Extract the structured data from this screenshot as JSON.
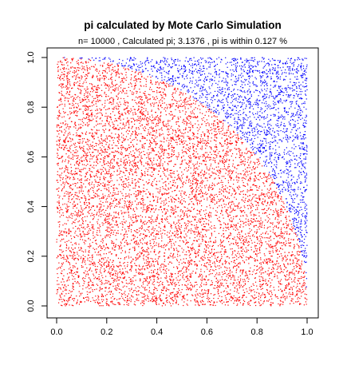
{
  "chart_data": {
    "type": "scatter",
    "title": "pi calculated by Mote Carlo Simulation",
    "subtitle": "n= 10000 , Calculated pi; 3.1376 , pi is within 0.127 %",
    "xlabel": "",
    "ylabel": "",
    "xlim": [
      0,
      1
    ],
    "ylim": [
      0,
      1
    ],
    "x_ticks": [
      "0.0",
      "0.2",
      "0.4",
      "0.6",
      "0.8",
      "1.0"
    ],
    "y_ticks": [
      "0.0",
      "0.2",
      "0.4",
      "0.6",
      "0.8",
      "1.0"
    ],
    "grid": false,
    "legend": "none",
    "n": 10000,
    "inside_count": 7844,
    "outside_count": 2156,
    "colors": {
      "inside": "#ff0000",
      "outside": "#0000ff"
    },
    "boundary": "quarter circle x^2 + y^2 = 1"
  }
}
